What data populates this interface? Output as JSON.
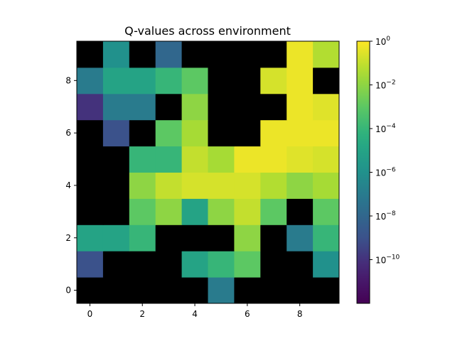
{
  "chart_data": {
    "type": "heatmap",
    "title": "Q-values across environment",
    "xlabel": "",
    "ylabel": "",
    "x_ticks": [
      "0",
      "2",
      "4",
      "6",
      "8"
    ],
    "y_ticks": [
      "0",
      "2",
      "4",
      "6",
      "8"
    ],
    "xlim": [
      -0.5,
      9.5
    ],
    "ylim": [
      -0.5,
      9.5
    ],
    "origin": "lower",
    "colormap": "viridis",
    "color_scale": "log",
    "masked_color": "#000000",
    "colorbar": {
      "range": [
        1e-12,
        1
      ],
      "tick_values": [
        1,
        0.01,
        0.0001,
        1e-06,
        1e-08,
        1e-10
      ],
      "tick_labels": [
        {
          "base": "10",
          "exp": "0"
        },
        {
          "base": "10",
          "exp": "−2"
        },
        {
          "base": "10",
          "exp": "−4"
        },
        {
          "base": "10",
          "exp": "−6"
        },
        {
          "base": "10",
          "exp": "−8"
        },
        {
          "base": "10",
          "exp": "−10"
        }
      ]
    },
    "note_rows": "grid[0] is the row at y=0 (bottom); null = masked (black)",
    "grid": [
      [
        null,
        null,
        null,
        null,
        null,
        1e-07,
        null,
        null,
        null,
        null
      ],
      [
        1e-09,
        null,
        null,
        null,
        1e-05,
        0.0001,
        0.001,
        null,
        null,
        1e-06
      ],
      [
        1e-05,
        1e-05,
        0.0001,
        null,
        null,
        null,
        0.01,
        null,
        1e-07,
        0.0001
      ],
      [
        null,
        null,
        0.001,
        0.01,
        1e-05,
        0.01,
        0.1,
        0.001,
        null,
        0.001
      ],
      [
        null,
        null,
        0.01,
        0.1,
        0.2,
        0.2,
        0.2,
        0.05,
        0.01,
        0.03
      ],
      [
        null,
        null,
        0.0001,
        0.0001,
        0.1,
        0.03,
        0.5,
        0.5,
        0.3,
        0.2
      ],
      [
        null,
        1e-09,
        null,
        0.001,
        0.03,
        null,
        null,
        0.5,
        0.5,
        0.5
      ],
      [
        1e-10,
        1e-07,
        1e-07,
        null,
        0.01,
        null,
        null,
        null,
        0.5,
        0.3
      ],
      [
        1e-07,
        1e-05,
        1e-05,
        0.0001,
        0.001,
        null,
        null,
        0.2,
        0.5,
        null
      ],
      [
        null,
        1e-06,
        null,
        1e-08,
        null,
        null,
        null,
        null,
        0.5,
        0.05
      ]
    ]
  }
}
